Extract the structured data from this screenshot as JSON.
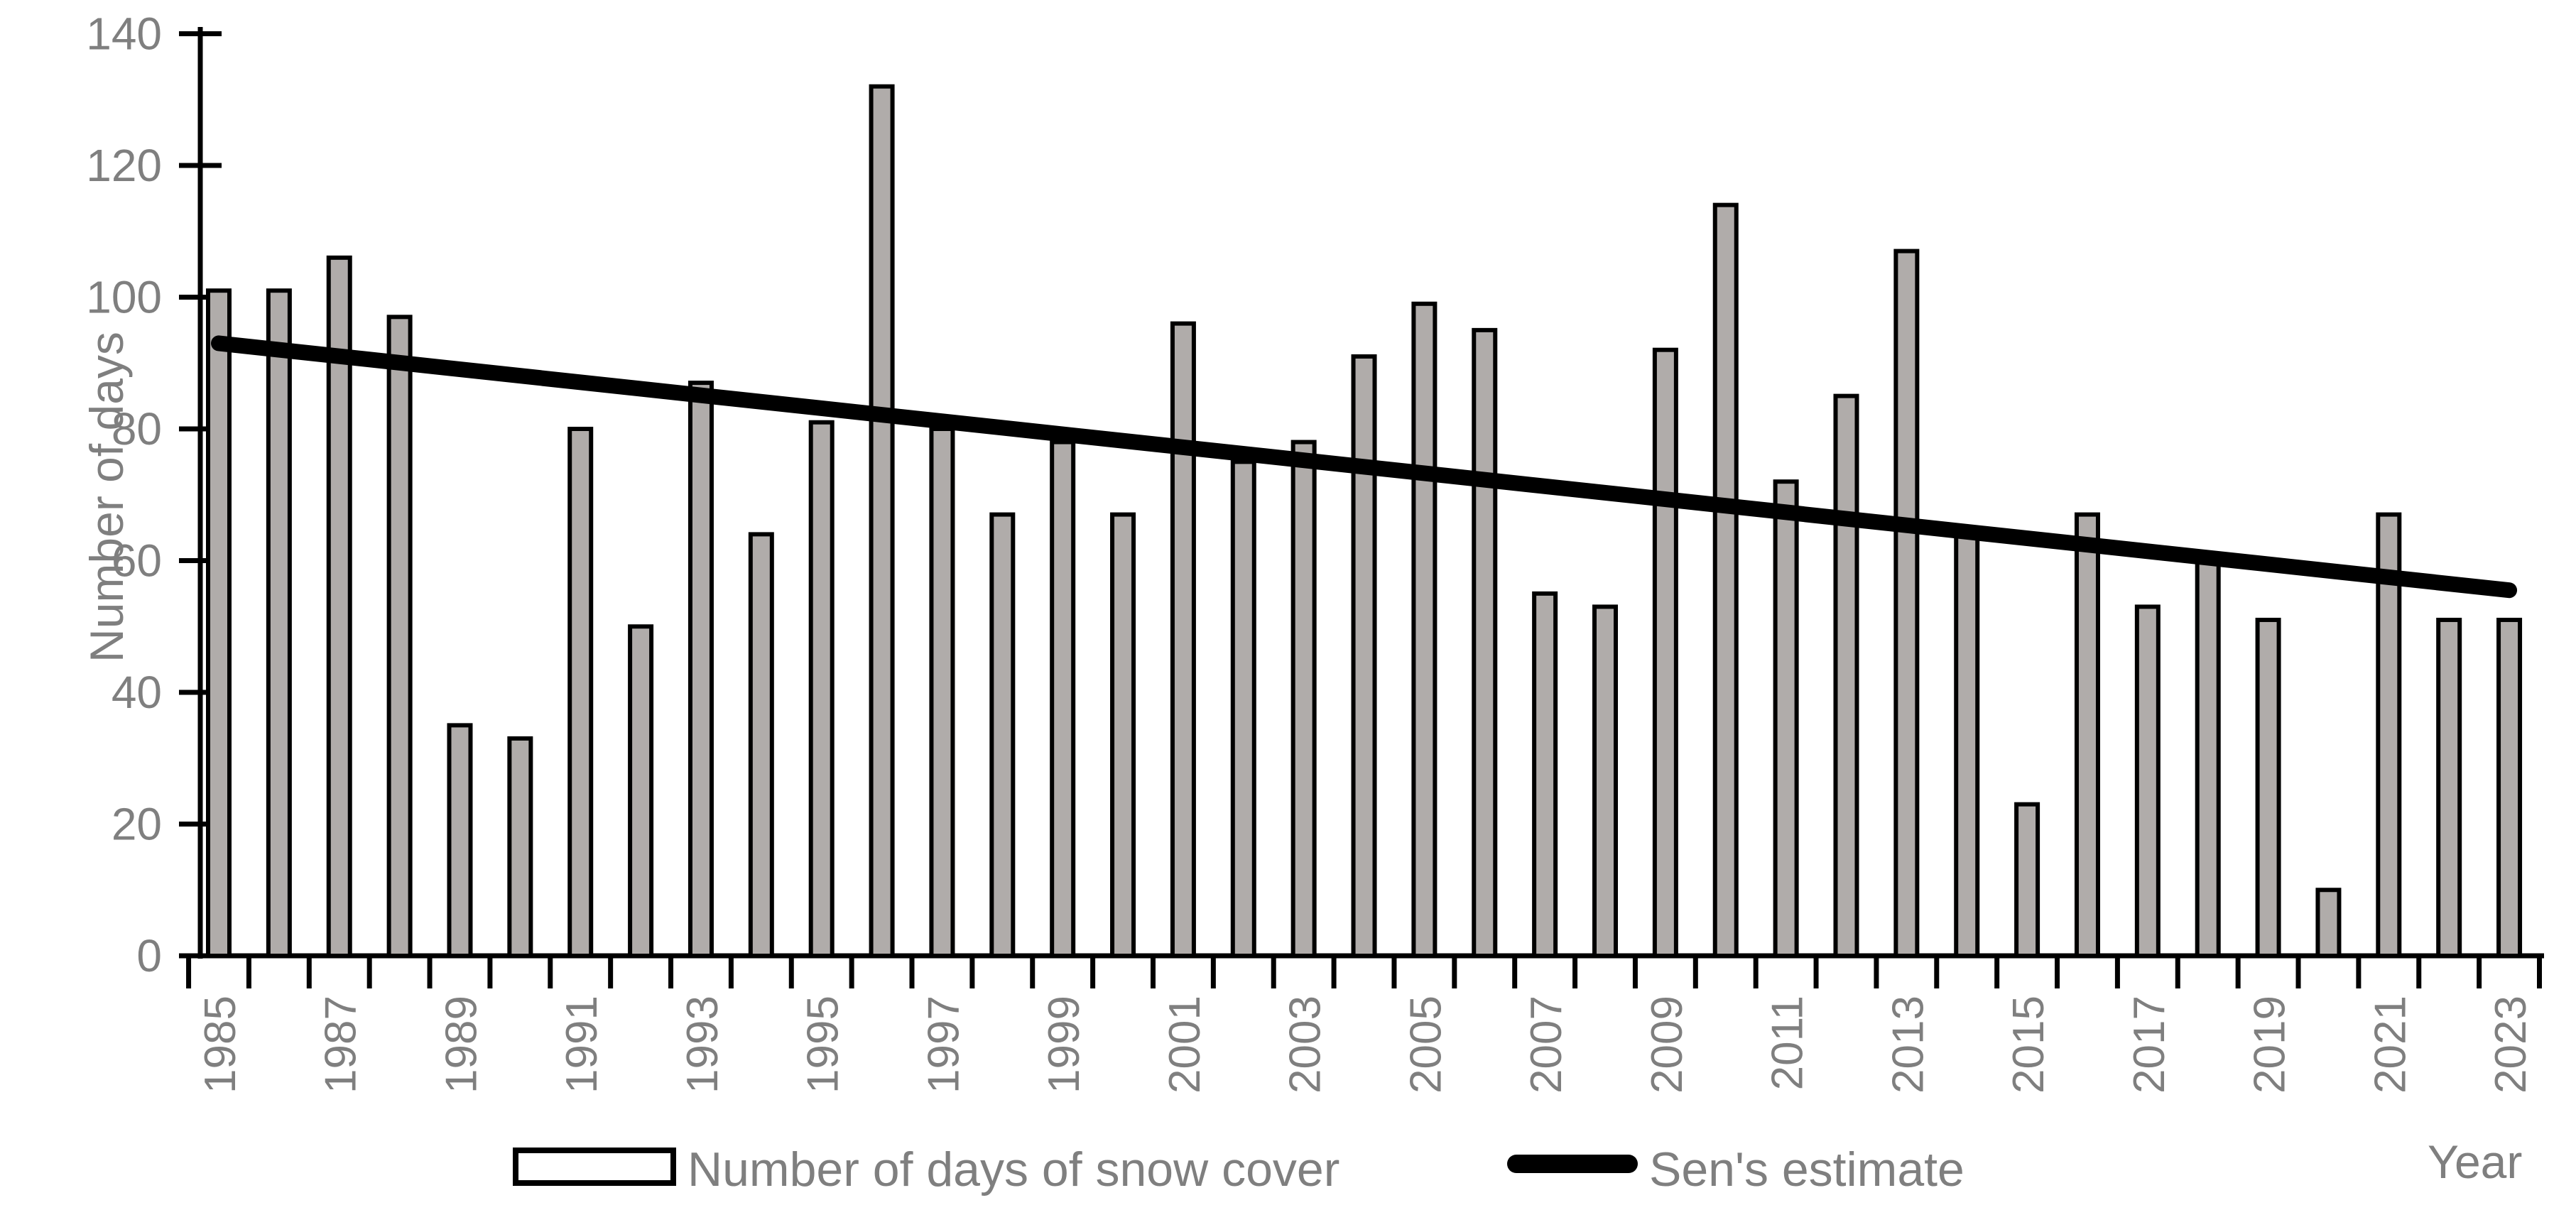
{
  "chart_data": {
    "type": "bar",
    "title": "",
    "xlabel": "Year",
    "ylabel": "Number of days",
    "ylim": [
      0,
      140
    ],
    "grid": false,
    "legend_position": "bottom",
    "yticks": [
      0,
      20,
      40,
      60,
      80,
      100,
      120,
      140
    ],
    "categories": [
      1985,
      1986,
      1987,
      1988,
      1989,
      1990,
      1991,
      1992,
      1993,
      1994,
      1995,
      1996,
      1997,
      1998,
      1999,
      2000,
      2001,
      2002,
      2003,
      2004,
      2005,
      2006,
      2007,
      2008,
      2009,
      2010,
      2011,
      2012,
      2013,
      2014,
      2015,
      2016,
      2017,
      2018,
      2019,
      2020,
      2021,
      2022,
      2023
    ],
    "x_tick_labels": [
      1985,
      1987,
      1989,
      1991,
      1993,
      1995,
      1997,
      1999,
      2001,
      2003,
      2005,
      2007,
      2009,
      2011,
      2013,
      2015,
      2017,
      2019,
      2021,
      2023
    ],
    "series": [
      {
        "name": "Number of days of snow cover",
        "type": "bar",
        "values": [
          101,
          101,
          106,
          97,
          35,
          33,
          80,
          50,
          87,
          64,
          81,
          132,
          80,
          67,
          78,
          67,
          96,
          75,
          78,
          91,
          99,
          95,
          55,
          53,
          92,
          114,
          72,
          85,
          107,
          64,
          23,
          67,
          53,
          60,
          51,
          10,
          67,
          51,
          51
        ]
      },
      {
        "name": "Sen's estimate",
        "type": "line",
        "x": [
          1985,
          2023
        ],
        "y": [
          93,
          55.5
        ]
      }
    ]
  },
  "axes": {
    "y_title": "Number of days",
    "x_title": "Year"
  },
  "legend": {
    "bar_label": "Number of days of snow cover",
    "line_label": "Sen's estimate"
  },
  "colors": {
    "bar_fill": "#b0acaa",
    "bar_border": "#000000",
    "sen_line": "#000000",
    "axis": "#000000",
    "text": "#7f7f7f",
    "background": "#ffffff"
  }
}
